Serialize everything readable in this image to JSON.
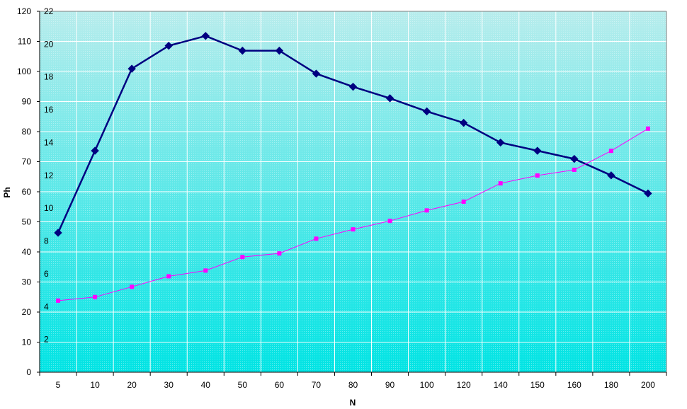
{
  "chart_data": {
    "type": "line",
    "title": "",
    "xlabel": "N",
    "ylabel": "Ph",
    "categories": [
      "5",
      "10",
      "20",
      "30",
      "40",
      "50",
      "60",
      "70",
      "80",
      "90",
      "100",
      "120",
      "140",
      "150",
      "160",
      "180",
      "200"
    ],
    "y_ticks": [
      "0",
      "10",
      "20",
      "30",
      "40",
      "50",
      "60",
      "70",
      "80",
      "90",
      "100",
      "110",
      "120"
    ],
    "y2_ticks": [
      "2",
      "4",
      "6",
      "8",
      "10",
      "12",
      "14",
      "16",
      "18",
      "20",
      "22"
    ],
    "ylim": [
      0,
      120
    ],
    "y2lim": [
      0,
      22
    ],
    "grid": true,
    "legend": "none",
    "series": [
      {
        "axis": "secondary",
        "marker": "diamond",
        "color": "#000080",
        "values": [
          8.5,
          13.5,
          18.5,
          19.9,
          20.5,
          19.6,
          19.6,
          18.2,
          17.4,
          16.7,
          15.9,
          15.2,
          14.0,
          13.5,
          13.0,
          12.0,
          10.9
        ]
      },
      {
        "axis": "primary",
        "marker": "square",
        "color": "#ff00ff",
        "values": [
          23.8,
          25.0,
          28.4,
          31.9,
          33.8,
          38.3,
          39.5,
          44.4,
          47.5,
          50.3,
          53.8,
          56.7,
          62.8,
          65.4,
          67.3,
          73.6,
          81.0
        ]
      }
    ],
    "colors": {
      "plot_top": "#b8ecec",
      "plot_bottom": "#00e4e4",
      "grid": "#ffffff",
      "axis": "#000000"
    }
  }
}
